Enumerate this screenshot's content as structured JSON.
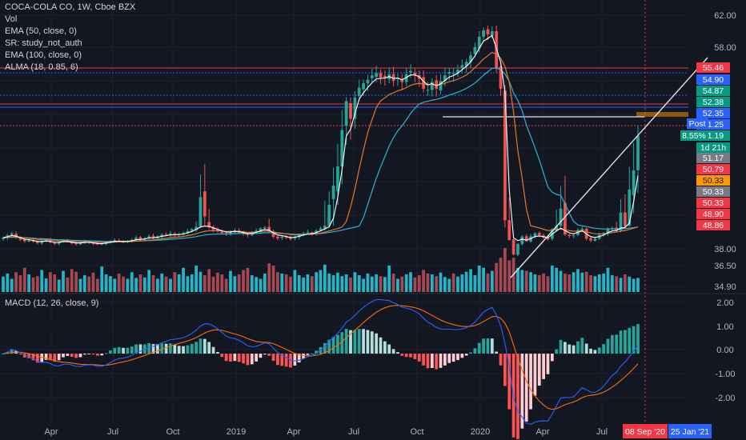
{
  "header": {
    "title": "COCA-COLA CO, 1W, Cboe BZX",
    "indicators": [
      "Vol",
      "EMA (50, close, 0)",
      "SR: study_not_auth",
      "EMA (100, close, 0)",
      "ALMA (18, 0.85, 6)"
    ],
    "macd_label": "MACD (12, 26, close, 9)"
  },
  "colors": {
    "background": "#131722",
    "bull": "#26a69a",
    "bear": "#ef5350",
    "vol_bull": "#26c6da",
    "vol_bear": "#b84c56",
    "ema50": "#e07a2b",
    "ema100": "#29b6d6",
    "alma": "#ffffff",
    "macd": "#2962ff",
    "signal": "#ff6d00",
    "hist_pos_up": "#26a69a",
    "hist_pos_down": "#b2dfdb",
    "hist_neg_down": "#ff5252",
    "hist_neg_up": "#ffcdd2"
  },
  "price_axis": {
    "ticks": [
      "62.00",
      "58.00",
      "38.00",
      "36.50",
      "34.90"
    ],
    "badges": [
      {
        "text": "55.46",
        "bg": "#f23645",
        "fg": "#ffffff"
      },
      {
        "text": "54.90",
        "bg": "#2962ff",
        "fg": "#ffffff"
      },
      {
        "text": "54.87",
        "bg": "#089981",
        "fg": "#ffffff"
      },
      {
        "text": "52.38",
        "bg": "#089981",
        "fg": "#ffffff"
      },
      {
        "text": "52.35",
        "bg": "#2962ff",
        "fg": "#ffffff"
      },
      {
        "text": "51.25",
        "bg": "#2962ff",
        "fg": "#ffffff"
      },
      {
        "text": "51.19",
        "bg": "#089981",
        "fg": "#ffffff"
      },
      {
        "text": "1d 21h",
        "bg": "#089981",
        "fg": "#ffffff"
      },
      {
        "text": "51.17",
        "bg": "#787b86",
        "fg": "#ffffff"
      },
      {
        "text": "50.79",
        "bg": "#f23645",
        "fg": "#ffffff"
      },
      {
        "text": "50.33",
        "bg": "#ff9800",
        "fg": "#131722"
      },
      {
        "text": "50.33",
        "bg": "#787b86",
        "fg": "#ffffff"
      },
      {
        "text": "50.33",
        "bg": "#f23645",
        "fg": "#ffffff"
      },
      {
        "text": "48.90",
        "bg": "#f23645",
        "fg": "#ffffff"
      },
      {
        "text": "48.86",
        "bg": "#f23645",
        "fg": "#ffffff"
      }
    ],
    "post_label": "Post",
    "change_label": "8.55%"
  },
  "macd_axis": {
    "ticks": [
      "2.00",
      "1.00",
      "0.00",
      "-1.00",
      "-2.00"
    ]
  },
  "time_axis": {
    "ticks": [
      "Apr",
      "Jul",
      "Oct",
      "2019",
      "Apr",
      "Jul",
      "Oct",
      "2020",
      "Apr",
      "Jul"
    ],
    "cursor_date": "08 Sep '20",
    "end_date": "25 Jan '21",
    "hidden_fragment": "t"
  },
  "chart_data": {
    "type": "candlestick",
    "title": "COCA-COLA CO, 1W, Cboe BZX",
    "interval": "1W",
    "x_range": [
      "2018-01",
      "2020-09"
    ],
    "price_series_close": [
      45.2,
      45.9,
      46.5,
      45.3,
      44.6,
      44.0,
      44.5,
      43.8,
      43.2,
      43.9,
      44.3,
      43.5,
      42.9,
      43.6,
      44.2,
      43.9,
      43.1,
      42.8,
      43.2,
      43.9,
      43.4,
      43.0,
      42.6,
      42.9,
      43.6,
      44.0,
      44.4,
      44.1,
      43.7,
      44.0,
      44.5,
      45.2,
      44.8,
      45.0,
      45.6,
      45.2,
      45.6,
      46.1,
      46.0,
      46.5,
      46.0,
      46.3,
      46.6,
      47.2,
      47.8,
      48.5,
      49.6,
      49.1,
      48.4,
      47.6,
      47.1,
      46.6,
      46.3,
      47.0,
      47.4,
      46.8,
      46.4,
      46.0,
      46.6,
      47.3,
      48.0,
      48.3,
      47.1,
      45.5,
      45.0,
      45.5,
      45.2,
      44.8,
      45.5,
      46.0,
      46.5,
      46.9,
      46.5,
      47.3,
      48.0,
      48.8,
      49.4,
      49.9,
      50.4,
      51.4,
      52.5,
      51.8,
      52.8,
      53.7,
      54.1,
      54.4,
      54.8,
      55.0,
      54.6,
      54.6,
      54.9,
      54.3,
      54.6,
      54.2,
      54.9,
      55.2,
      54.8,
      54.5,
      53.6,
      53.5,
      54.2,
      53.6,
      54.3,
      54.8,
      55.1,
      55.0,
      55.3,
      55.8,
      56.2,
      57.0,
      58.0,
      59.3,
      60.1,
      59.6,
      60.0,
      55.5,
      53.6,
      49.0,
      44.5,
      38.3,
      42.8,
      45.5,
      44.0,
      45.6,
      46.5,
      46.0,
      45.2,
      44.7,
      47.8,
      48.8,
      49.3,
      46.2,
      45.7,
      45.9,
      47.5,
      47.9,
      44.9,
      44.3,
      44.9,
      46.0,
      46.6,
      47.8,
      48.1,
      47.5,
      49.2,
      48.7,
      49.8,
      50.3,
      51.2
    ],
    "volume_relative": [
      0.35,
      0.42,
      0.3,
      0.45,
      0.38,
      0.55,
      0.4,
      0.33,
      0.36,
      0.5,
      0.31,
      0.45,
      0.4,
      0.28,
      0.48,
      0.33,
      0.52,
      0.46,
      0.3,
      0.38,
      0.35,
      0.44,
      0.3,
      0.58,
      0.4,
      0.36,
      0.3,
      0.42,
      0.35,
      0.3,
      0.45,
      0.32,
      0.4,
      0.33,
      0.5,
      0.38,
      0.3,
      0.42,
      0.35,
      0.3,
      0.45,
      0.4,
      0.55,
      0.36,
      0.4,
      0.6,
      0.46,
      0.38,
      0.52,
      0.35,
      0.44,
      0.4,
      0.3,
      0.48,
      0.36,
      0.4,
      0.5,
      0.55,
      0.38,
      0.34,
      0.3,
      0.42,
      0.65,
      0.6,
      0.45,
      0.42,
      0.4,
      0.35,
      0.5,
      0.38,
      0.33,
      0.4,
      0.36,
      0.45,
      0.5,
      0.62,
      0.42,
      0.38,
      0.44,
      0.36,
      0.4,
      0.33,
      0.45,
      0.38,
      0.3,
      0.42,
      0.35,
      0.4,
      0.36,
      0.34,
      0.6,
      0.42,
      0.3,
      0.35,
      0.4,
      0.45,
      0.33,
      0.38,
      0.5,
      0.42,
      0.4,
      0.36,
      0.44,
      0.34,
      0.3,
      0.42,
      0.35,
      0.4,
      0.46,
      0.52,
      0.38,
      0.6,
      0.55,
      0.42,
      0.48,
      0.66,
      0.78,
      1.0,
      0.72,
      0.78,
      0.55,
      0.5,
      0.48,
      0.45,
      0.4,
      0.38,
      0.42,
      0.36,
      0.6,
      0.55,
      0.48,
      0.42,
      0.4,
      0.45,
      0.52,
      0.44,
      0.46,
      0.38,
      0.36,
      0.4,
      0.42,
      0.55,
      0.38,
      0.36,
      0.32,
      0.4,
      0.35,
      0.3,
      0.32
    ],
    "y_axis_ticks": [
      "62.00",
      "58.00",
      "38.00",
      "36.50",
      "34.90"
    ],
    "macd": {
      "label": "MACD (12, 26, close, 9)",
      "ylim": [
        -2.7,
        2.2
      ]
    }
  }
}
